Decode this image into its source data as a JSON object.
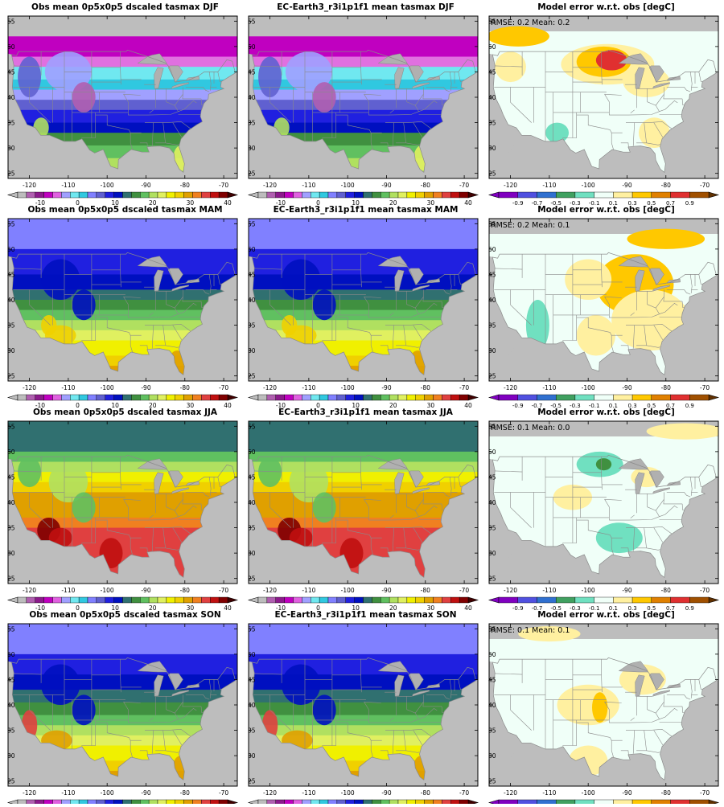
{
  "chart_data": {
    "type": "map",
    "columns": 3,
    "rows": [
      {
        "season": "DJF",
        "panels": [
          {
            "title": "Obs mean 0p5x0p5 dscaled tasmax DJF",
            "kind": "mean"
          },
          {
            "title": "EC-Earth3_r3i1p1f1 mean tasmax DJF",
            "kind": "mean"
          },
          {
            "title": "Model error w.r.t. obs [degC]",
            "kind": "error",
            "stats": "RMSE: 0.2  Mean: 0.2"
          }
        ]
      },
      {
        "season": "MAM",
        "panels": [
          {
            "title": "Obs mean 0p5x0p5 dscaled tasmax MAM",
            "kind": "mean"
          },
          {
            "title": "EC-Earth3_r3i1p1f1 mean tasmax MAM",
            "kind": "mean"
          },
          {
            "title": "Model error w.r.t. obs [degC]",
            "kind": "error",
            "stats": "RMSE: 0.2  Mean: 0.1"
          }
        ]
      },
      {
        "season": "JJA",
        "panels": [
          {
            "title": "Obs mean 0p5x0p5 dscaled tasmax JJA",
            "kind": "mean"
          },
          {
            "title": "EC-Earth3_r3i1p1f1 mean tasmax JJA",
            "kind": "mean"
          },
          {
            "title": "Model error w.r.t. obs [degC]",
            "kind": "error",
            "stats": "RMSE: 0.1  Mean: 0.0"
          }
        ]
      },
      {
        "season": "SON",
        "panels": [
          {
            "title": "Obs mean 0p5x0p5 dscaled tasmax SON",
            "kind": "mean"
          },
          {
            "title": "EC-Earth3_r3i1p1f1 mean tasmax SON",
            "kind": "mean"
          },
          {
            "title": "Model error w.r.t. obs [degC]",
            "kind": "error",
            "stats": "RMSE: 0.1  Mean: 0.1"
          }
        ]
      }
    ],
    "lat_ticks": [
      "25",
      "30",
      "35",
      "40",
      "45",
      "50",
      "55"
    ],
    "lon_ticks": [
      "-120",
      "-110",
      "-100",
      "-90",
      "-80",
      "-70"
    ],
    "mean_colorbar": {
      "labels": [
        "-10",
        "0",
        "10",
        "20",
        "30",
        "40"
      ],
      "colors": [
        "#bdbdbd",
        "#b05fb0",
        "#8c1a8c",
        "#c000c0",
        "#e060e0",
        "#a0a0ff",
        "#70e8f0",
        "#30c8e0",
        "#8080ff",
        "#6060d0",
        "#2020e0",
        "#0010c0",
        "#307070",
        "#409040",
        "#60c060",
        "#b0e060",
        "#e0f060",
        "#f0f000",
        "#f0d000",
        "#e0a000",
        "#f08020",
        "#e04040",
        "#c01010",
        "#800000"
      ]
    },
    "error_colorbar": {
      "labels": [
        "-0.9",
        "-0.7",
        "-0.5",
        "-0.3",
        "-0.1",
        "0.1",
        "0.3",
        "0.5",
        "0.7",
        "0.9"
      ],
      "colors": [
        "#8000c0",
        "#5050e0",
        "#3070d0",
        "#40a060",
        "#70e0c0",
        "#f0fff8",
        "#fff0a0",
        "#ffc800",
        "#e08000",
        "#e03030",
        "#a05000"
      ]
    },
    "land_color": "#f0fff8",
    "ocean_color": "#bdbdbd",
    "water_color": "#b0b0b0"
  }
}
